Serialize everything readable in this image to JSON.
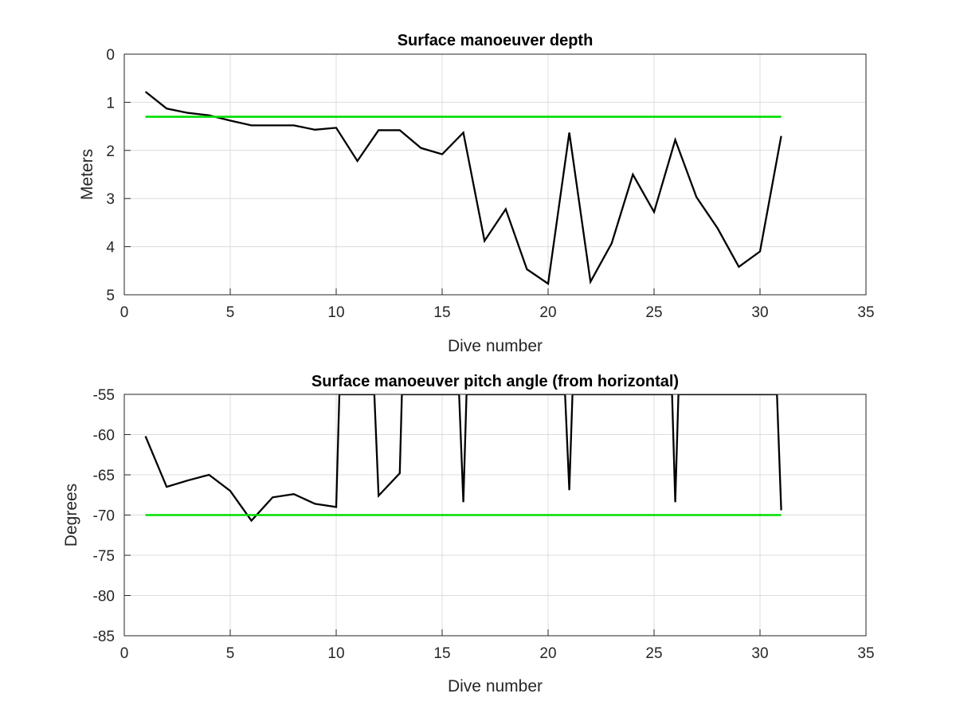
{
  "chart_data": [
    {
      "type": "line",
      "title": "Surface manoeuver depth",
      "xlabel": "Dive number",
      "ylabel": "Meters",
      "xlim": [
        0,
        35
      ],
      "ylim": [
        0,
        5
      ],
      "y_reversed": true,
      "grid": true,
      "xticks": [
        "0",
        "5",
        "10",
        "15",
        "20",
        "25",
        "30",
        "35"
      ],
      "yticks": [
        "0",
        "1",
        "2",
        "3",
        "4",
        "5"
      ],
      "x": [
        1,
        2,
        3,
        4,
        5,
        6,
        7,
        8,
        9,
        10,
        11,
        12,
        13,
        14,
        15,
        16,
        17,
        18,
        19,
        20,
        21,
        22,
        23,
        24,
        25,
        26,
        27,
        28,
        29,
        30,
        31
      ],
      "series": [
        {
          "color": "#000000",
          "values": [
            0.78,
            1.13,
            1.22,
            1.27,
            1.38,
            1.48,
            1.48,
            1.48,
            1.57,
            1.53,
            2.22,
            1.58,
            1.58,
            1.95,
            2.08,
            1.63,
            3.88,
            3.22,
            4.47,
            4.77,
            1.63,
            4.73,
            3.93,
            2.5,
            3.28,
            1.78,
            2.97,
            3.62,
            4.42,
            4.1,
            1.7
          ]
        },
        {
          "color": "#00dd00",
          "x": [
            1,
            31
          ],
          "values": [
            1.3,
            1.3
          ]
        }
      ]
    },
    {
      "type": "line",
      "title": "Surface manoeuver pitch angle (from horizontal)",
      "xlabel": "Dive number",
      "ylabel": "Degrees",
      "xlim": [
        0,
        35
      ],
      "ylim": [
        -85,
        -55
      ],
      "grid": true,
      "xticks": [
        "0",
        "5",
        "10",
        "15",
        "20",
        "25",
        "30",
        "35"
      ],
      "yticks": [
        "-55",
        "-60",
        "-65",
        "-70",
        "-75",
        "-80",
        "-85"
      ],
      "x": [
        1,
        2,
        3,
        4,
        5,
        6,
        7,
        8,
        9,
        10,
        10.15,
        11.8,
        12,
        13,
        13.1,
        15.8,
        16,
        16.15,
        20.8,
        21,
        21.15,
        25.85,
        26,
        26.15,
        30.8,
        31
      ],
      "series": [
        {
          "color": "#000000",
          "values": [
            -60.2,
            -66.5,
            -65.7,
            -65,
            -67,
            -70.7,
            -67.8,
            -67.4,
            -68.6,
            -69,
            -55,
            -55,
            -67.6,
            -64.8,
            -55,
            -55,
            -68.4,
            -55,
            -55,
            -66.9,
            -55,
            -55,
            -68.4,
            -55,
            -55,
            -69.4
          ]
        },
        {
          "color": "#00dd00",
          "x": [
            1,
            31
          ],
          "values": [
            -70,
            -70
          ]
        }
      ]
    }
  ]
}
